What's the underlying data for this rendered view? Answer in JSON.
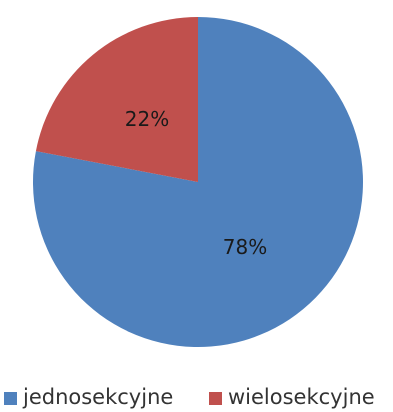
{
  "chart_data": {
    "type": "pie",
    "categories": [
      "jednosekcyjne",
      "wielosekcyjne"
    ],
    "values": [
      78,
      22
    ],
    "data_labels": [
      "78%",
      "22%"
    ],
    "colors": [
      "#4f81bd",
      "#c0504d"
    ],
    "legend_position": "bottom",
    "start_angle": "top",
    "direction": "clockwise"
  }
}
